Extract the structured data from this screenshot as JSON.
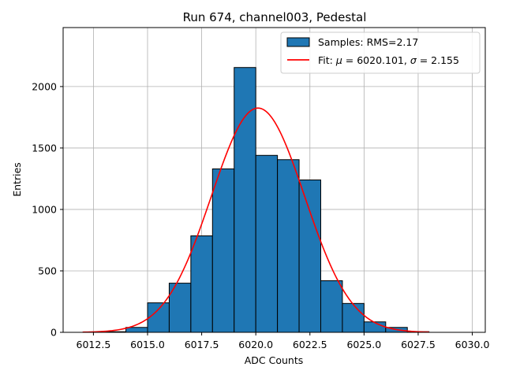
{
  "chart_data": {
    "type": "bar",
    "title": "Run 674, channel003, Pedestal",
    "xlabel": "ADC Counts",
    "ylabel": "Entries",
    "xlim": [
      6011.1,
      6030.6
    ],
    "ylim": [
      0,
      2480
    ],
    "xticks": [
      6012.5,
      6015.0,
      6017.5,
      6020.0,
      6022.5,
      6025.0,
      6027.5,
      6030.0
    ],
    "xtick_labels": [
      "6012.5",
      "6015.0",
      "6017.5",
      "6020.0",
      "6022.5",
      "6025.0",
      "6027.5",
      "6030.0"
    ],
    "yticks": [
      0,
      500,
      1000,
      1500,
      2000
    ],
    "ytick_labels": [
      "0",
      "500",
      "1000",
      "1500",
      "2000"
    ],
    "grid": true,
    "legend_position": "top-right",
    "histogram": {
      "name": "Samples: RMS=2.17",
      "color": "#1f77b4",
      "edgecolor": "#000000",
      "bins": [
        {
          "x0": 6013,
          "x1": 6014,
          "count": 5
        },
        {
          "x0": 6014,
          "x1": 6015,
          "count": 40
        },
        {
          "x0": 6015,
          "x1": 6016,
          "count": 240
        },
        {
          "x0": 6016,
          "x1": 6017,
          "count": 400
        },
        {
          "x0": 6017,
          "x1": 6018,
          "count": 785
        },
        {
          "x0": 6018,
          "x1": 6019,
          "count": 1330
        },
        {
          "x0": 6019,
          "x1": 6020,
          "count": 2155
        },
        {
          "x0": 6020,
          "x1": 6021,
          "count": 1440
        },
        {
          "x0": 6021,
          "x1": 6022,
          "count": 1405
        },
        {
          "x0": 6022,
          "x1": 6023,
          "count": 1240
        },
        {
          "x0": 6023,
          "x1": 6024,
          "count": 420
        },
        {
          "x0": 6024,
          "x1": 6025,
          "count": 235
        },
        {
          "x0": 6025,
          "x1": 6026,
          "count": 85
        },
        {
          "x0": 6026,
          "x1": 6027,
          "count": 40
        },
        {
          "x0": 6027,
          "x1": 6028,
          "count": 5
        }
      ]
    },
    "fit": {
      "name_prefix": "Fit: ",
      "mu_symbol": "μ",
      "sigma_symbol": "σ",
      "mu_text": " = 6020.101, ",
      "sigma_text": " = 2.155",
      "color": "#ff0000",
      "mu": 6020.101,
      "sigma": 2.155,
      "amplitude": 1825,
      "x_range": [
        6012,
        6028
      ]
    }
  }
}
